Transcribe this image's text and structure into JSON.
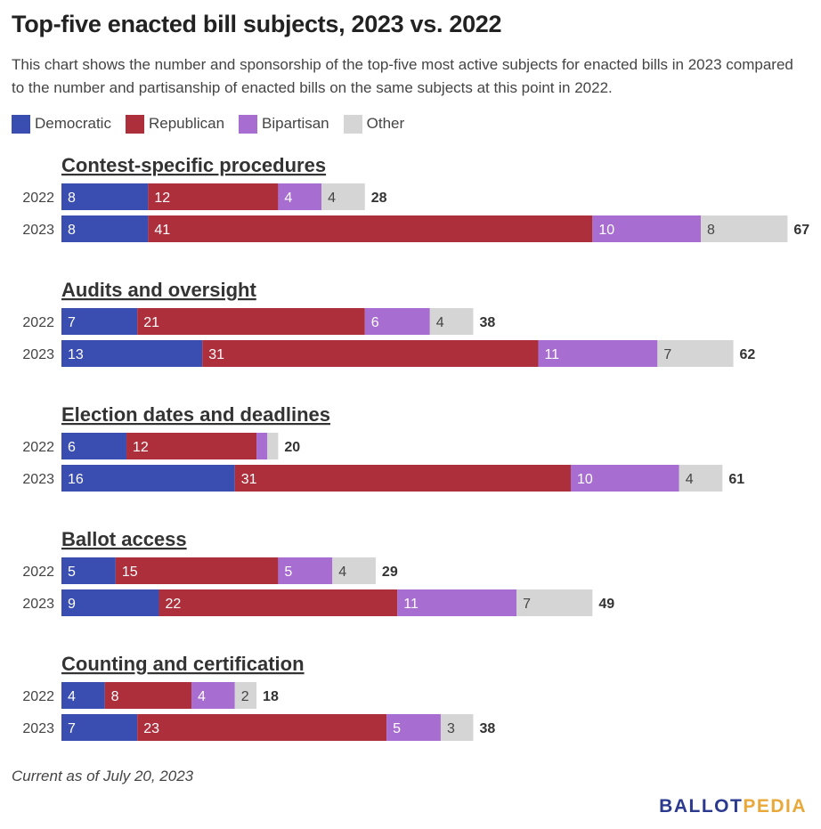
{
  "title": "Top-five enacted bill subjects, 2023 vs. 2022",
  "subtitle": "This chart shows the number and sponsorship of the top-five most active subjects for enacted bills in 2023 compared to the number and partisanship of enacted bills on the same subjects at this point in 2022.",
  "footnote": "Current as of July 20, 2023",
  "logo": {
    "part1": "BALLOT",
    "part2": "PEDIA",
    "color1": "#2b3a8f",
    "color2": "#e8a93a"
  },
  "legend": [
    {
      "label": "Democratic",
      "color": "#3a4db0"
    },
    {
      "label": "Republican",
      "color": "#ad2f3c"
    },
    {
      "label": "Bipartisan",
      "color": "#a86dd0"
    },
    {
      "label": "Other",
      "color": "#d5d5d5"
    }
  ],
  "chart_data": {
    "type": "bar",
    "orientation": "horizontal",
    "stacked": true,
    "series_names": [
      "Democratic",
      "Republican",
      "Bipartisan",
      "Other"
    ],
    "colors": [
      "#3a4db0",
      "#ad2f3c",
      "#a86dd0",
      "#d5d5d5"
    ],
    "groups": [
      {
        "name": "Contest-specific procedures",
        "rows": [
          {
            "year": "2022",
            "values": [
              8,
              12,
              4,
              4
            ],
            "labels": [
              "8",
              "12",
              "4",
              "4"
            ],
            "total": 28
          },
          {
            "year": "2023",
            "values": [
              8,
              41,
              10,
              8
            ],
            "labels": [
              "8",
              "41",
              "10",
              "8"
            ],
            "total": 67
          }
        ]
      },
      {
        "name": "Audits and oversight",
        "rows": [
          {
            "year": "2022",
            "values": [
              7,
              21,
              6,
              4
            ],
            "labels": [
              "7",
              "21",
              "6",
              "4"
            ],
            "total": 38
          },
          {
            "year": "2023",
            "values": [
              13,
              31,
              11,
              7
            ],
            "labels": [
              "13",
              "31",
              "11",
              "7"
            ],
            "total": 62
          }
        ]
      },
      {
        "name": "Election dates and deadlines",
        "rows": [
          {
            "year": "2022",
            "values": [
              6,
              12,
              1,
              1
            ],
            "labels": [
              "6",
              "12",
              "",
              ""
            ],
            "total": 20
          },
          {
            "year": "2023",
            "values": [
              16,
              31,
              10,
              4
            ],
            "labels": [
              "16",
              "31",
              "10",
              "4"
            ],
            "total": 61
          }
        ]
      },
      {
        "name": "Ballot access",
        "rows": [
          {
            "year": "2022",
            "values": [
              5,
              15,
              5,
              4
            ],
            "labels": [
              "5",
              "15",
              "5",
              "4"
            ],
            "total": 29
          },
          {
            "year": "2023",
            "values": [
              9,
              22,
              11,
              7
            ],
            "labels": [
              "9",
              "22",
              "11",
              "7"
            ],
            "total": 49
          }
        ]
      },
      {
        "name": "Counting and certification",
        "rows": [
          {
            "year": "2022",
            "values": [
              4,
              8,
              4,
              2
            ],
            "labels": [
              "4",
              "8",
              "4",
              "2"
            ],
            "total": 18
          },
          {
            "year": "2023",
            "values": [
              7,
              23,
              5,
              3
            ],
            "labels": [
              "7",
              "23",
              "5",
              "3"
            ],
            "total": 38
          }
        ]
      }
    ]
  }
}
